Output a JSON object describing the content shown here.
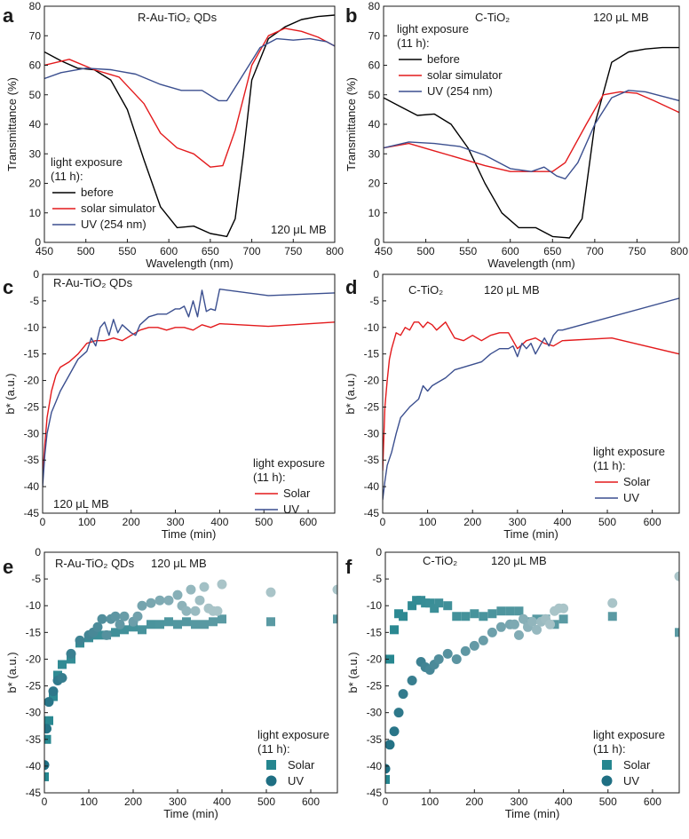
{
  "figure": {
    "colors": {
      "before": "#000000",
      "solar": "#e31a1c",
      "uv": "#3b4f8f",
      "solar_marker": "#25868f",
      "uv_marker": "#1f6f83",
      "marker_grad_light": "#a9c4c8",
      "marker_grad_mid": "#5a9aa3"
    }
  },
  "chart_data": [
    {
      "id": "a",
      "panel_letter": "a",
      "type": "line",
      "title": "R-Au-TiO₂ QDs",
      "annotation": "120 μL MB",
      "xlabel": "Wavelength (nm)",
      "ylabel": "Transmittance (%)",
      "xlim": [
        450,
        800
      ],
      "ylim": [
        0,
        80
      ],
      "xticks": [
        450,
        500,
        550,
        600,
        650,
        700,
        750,
        800
      ],
      "yticks": [
        0,
        10,
        20,
        30,
        40,
        50,
        60,
        70,
        80
      ],
      "legend_title": [
        "light exposure",
        "(11 h):"
      ],
      "series": [
        {
          "name": "before",
          "color_key": "before",
          "x": [
            450,
            470,
            490,
            510,
            530,
            550,
            570,
            590,
            610,
            630,
            650,
            670,
            680,
            690,
            700,
            720,
            740,
            760,
            780,
            800
          ],
          "y": [
            64.5,
            61.5,
            59,
            58.5,
            55,
            45,
            28,
            12,
            5,
            5.5,
            3,
            2,
            8,
            30,
            55,
            69,
            73,
            75.5,
            76.5,
            77
          ]
        },
        {
          "name": "solar simulator",
          "color_key": "solar",
          "x": [
            450,
            480,
            510,
            540,
            570,
            590,
            610,
            630,
            650,
            665,
            680,
            700,
            720,
            740,
            760,
            780,
            800
          ],
          "y": [
            60,
            62,
            58.5,
            56,
            47,
            37,
            32,
            30,
            25.5,
            26,
            38,
            60,
            70,
            72.5,
            71.5,
            69.5,
            66.5
          ]
        },
        {
          "name": "UV (254 nm)",
          "color_key": "uv",
          "x": [
            450,
            470,
            500,
            530,
            560,
            590,
            615,
            640,
            660,
            670,
            690,
            710,
            730,
            750,
            770,
            790,
            800
          ],
          "y": [
            55.5,
            57.5,
            59,
            58.5,
            57,
            53.5,
            51.5,
            51.5,
            48,
            48,
            57,
            66,
            69,
            68.5,
            69,
            68,
            66.5
          ]
        }
      ]
    },
    {
      "id": "b",
      "panel_letter": "b",
      "type": "line",
      "title": "C-TiO₂",
      "annotation": "120 μL MB",
      "xlabel": "Wavelength (nm)",
      "ylabel": "Transmittance (%)",
      "xlim": [
        450,
        800
      ],
      "ylim": [
        0,
        80
      ],
      "xticks": [
        450,
        500,
        550,
        600,
        650,
        700,
        750,
        800
      ],
      "yticks": [
        0,
        10,
        20,
        30,
        40,
        50,
        60,
        70,
        80
      ],
      "legend_title": [
        "light exposure",
        "(11 h):"
      ],
      "series": [
        {
          "name": "before",
          "color_key": "before",
          "x": [
            450,
            470,
            490,
            510,
            530,
            550,
            570,
            590,
            610,
            630,
            650,
            670,
            685,
            700,
            720,
            740,
            760,
            780,
            800
          ],
          "y": [
            49,
            46,
            43,
            43.5,
            40,
            32,
            20,
            10,
            5,
            5,
            2,
            1.5,
            8,
            40,
            61,
            64.5,
            65.5,
            66,
            66
          ]
        },
        {
          "name": "solar simulator",
          "color_key": "solar",
          "x": [
            450,
            480,
            510,
            540,
            570,
            600,
            630,
            650,
            665,
            690,
            710,
            730,
            750,
            770,
            800
          ],
          "y": [
            32,
            33.5,
            31,
            28.5,
            26,
            24,
            24,
            24,
            27,
            40,
            50,
            51,
            50.5,
            48,
            44
          ]
        },
        {
          "name": "UV (254 nm)",
          "color_key": "uv",
          "x": [
            450,
            480,
            510,
            540,
            570,
            600,
            625,
            640,
            655,
            665,
            680,
            700,
            720,
            740,
            760,
            780,
            800
          ],
          "y": [
            32,
            34,
            33.5,
            32.5,
            29.5,
            25,
            24,
            25.5,
            22.5,
            21.5,
            27,
            40,
            49,
            51.5,
            51,
            49.5,
            48
          ]
        }
      ]
    },
    {
      "id": "c",
      "panel_letter": "c",
      "type": "line",
      "title": "R-Au-TiO₂ QDs",
      "annotation": "120 μL MB",
      "xlabel": "Time (min)",
      "ylabel": "b* (a.u.)",
      "xlim": [
        0,
        660
      ],
      "ylim": [
        -45,
        0
      ],
      "xticks": [
        0,
        100,
        200,
        300,
        400,
        500,
        600
      ],
      "yticks": [
        -45,
        -40,
        -35,
        -30,
        -25,
        -20,
        -15,
        -10,
        -5,
        0
      ],
      "legend_title": [
        "light exposure",
        "(11 h):"
      ],
      "series": [
        {
          "name": "Solar",
          "color_key": "solar",
          "x": [
            0,
            5,
            10,
            20,
            30,
            40,
            60,
            80,
            100,
            120,
            140,
            160,
            180,
            200,
            220,
            240,
            260,
            280,
            300,
            320,
            340,
            360,
            380,
            400,
            510,
            660
          ],
          "y": [
            -38,
            -32,
            -27,
            -22,
            -19,
            -17.5,
            -16.5,
            -15,
            -13,
            -12.5,
            -12.5,
            -12,
            -12.5,
            -11.5,
            -10.5,
            -10,
            -10,
            -10.5,
            -10,
            -10,
            -10.5,
            -9.5,
            -10,
            -9.3,
            -9.8,
            -9
          ]
        },
        {
          "name": "UV",
          "color_key": "uv",
          "x": [
            0,
            5,
            10,
            20,
            30,
            40,
            60,
            80,
            100,
            110,
            120,
            130,
            140,
            150,
            160,
            170,
            180,
            200,
            210,
            220,
            240,
            260,
            280,
            300,
            310,
            320,
            330,
            340,
            350,
            360,
            370,
            380,
            390,
            400,
            510,
            660
          ],
          "y": [
            -40,
            -34,
            -30,
            -26,
            -24,
            -22,
            -19,
            -16,
            -14.5,
            -12,
            -13.5,
            -10,
            -9,
            -11.5,
            -8.5,
            -11,
            -9.5,
            -11,
            -11.5,
            -9.5,
            -8,
            -7.5,
            -7.5,
            -6.5,
            -6.5,
            -6,
            -8,
            -5,
            -8,
            -3,
            -7,
            -6.5,
            -6.8,
            -2.8,
            -4,
            -3.5
          ]
        }
      ]
    },
    {
      "id": "d",
      "panel_letter": "d",
      "type": "line",
      "title": "C-TiO₂",
      "annotation": "120 μL MB",
      "xlabel": "Time (min)",
      "ylabel": "b* (a.u.)",
      "xlim": [
        0,
        660
      ],
      "ylim": [
        -45,
        0
      ],
      "xticks": [
        0,
        100,
        200,
        300,
        400,
        500,
        600
      ],
      "yticks": [
        -45,
        -40,
        -35,
        -30,
        -25,
        -20,
        -15,
        -10,
        -5,
        0
      ],
      "legend_title": [
        "light exposure",
        "(11 h):"
      ],
      "series": [
        {
          "name": "Solar",
          "color_key": "solar",
          "x": [
            0,
            5,
            10,
            15,
            20,
            30,
            40,
            50,
            60,
            70,
            80,
            90,
            100,
            110,
            120,
            140,
            160,
            180,
            200,
            220,
            240,
            260,
            280,
            300,
            320,
            340,
            360,
            380,
            400,
            510,
            660
          ],
          "y": [
            -37,
            -25,
            -20,
            -16,
            -14,
            -11,
            -11.5,
            -10,
            -10.5,
            -9,
            -9,
            -10,
            -9,
            -9.5,
            -10.5,
            -9,
            -12,
            -12.5,
            -11.5,
            -12.5,
            -11.5,
            -11,
            -11,
            -14,
            -12.5,
            -12,
            -13,
            -13.5,
            -12.5,
            -12,
            -15
          ]
        },
        {
          "name": "UV",
          "color_key": "uv",
          "x": [
            0,
            5,
            10,
            20,
            30,
            40,
            60,
            80,
            90,
            100,
            110,
            120,
            140,
            160,
            180,
            200,
            220,
            240,
            260,
            280,
            290,
            300,
            310,
            320,
            330,
            340,
            350,
            360,
            370,
            380,
            390,
            400,
            660
          ],
          "y": [
            -42.5,
            -39,
            -36,
            -33.5,
            -30,
            -27,
            -25,
            -23.5,
            -21,
            -22,
            -21,
            -20.5,
            -19.5,
            -18,
            -17.5,
            -17,
            -16.5,
            -15,
            -14,
            -14,
            -13.5,
            -15.5,
            -13,
            -14,
            -13,
            -15,
            -13.5,
            -12,
            -13.5,
            -11.5,
            -10.5,
            -10.5,
            -4.5
          ]
        }
      ]
    },
    {
      "id": "e",
      "panel_letter": "e",
      "type": "scatter",
      "title": "R-Au-TiO₂ QDs",
      "annotation": "120 μL MB",
      "xlabel": "Time (min)",
      "ylabel": "b* (a.u.)",
      "xlim": [
        0,
        660
      ],
      "ylim": [
        -45,
        0
      ],
      "xticks": [
        0,
        100,
        200,
        300,
        400,
        500,
        600
      ],
      "yticks": [
        -45,
        -40,
        -35,
        -30,
        -25,
        -20,
        -15,
        -10,
        -5,
        0
      ],
      "legend_title": [
        "light exposure",
        "(11 h):"
      ],
      "series": [
        {
          "name": "Solar",
          "marker": "square",
          "color_key": "solar_marker",
          "x": [
            0,
            5,
            10,
            20,
            30,
            40,
            60,
            80,
            100,
            120,
            140,
            160,
            180,
            200,
            220,
            240,
            260,
            280,
            300,
            320,
            340,
            360,
            380,
            400,
            510,
            660
          ],
          "y": [
            -42,
            -35,
            -31.5,
            -27,
            -23,
            -21,
            -20,
            -17,
            -16,
            -15.5,
            -15.5,
            -15,
            -14.5,
            -14,
            -14.5,
            -13.5,
            -13.5,
            -13,
            -13.5,
            -13,
            -13.5,
            -13.5,
            -13,
            -12.5,
            -13,
            -12.5
          ]
        },
        {
          "name": "UV",
          "marker": "circle",
          "color_key": "uv_marker",
          "x": [
            0,
            5,
            10,
            20,
            30,
            40,
            60,
            80,
            100,
            110,
            120,
            130,
            140,
            150,
            160,
            170,
            180,
            200,
            210,
            220,
            240,
            260,
            280,
            300,
            310,
            320,
            330,
            340,
            350,
            360,
            370,
            380,
            390,
            400,
            510,
            660
          ],
          "y": [
            -39.8,
            -33,
            -28,
            -26,
            -24,
            -23.5,
            -19,
            -16.5,
            -15.5,
            -15,
            -14,
            -12.5,
            -15.5,
            -12.5,
            -12,
            -13.5,
            -12,
            -13,
            -12,
            -10,
            -9.5,
            -9,
            -9,
            -8,
            -10,
            -11,
            -7,
            -11,
            -9,
            -6.5,
            -10.5,
            -11,
            -11,
            -6,
            -7.5,
            -7
          ]
        }
      ]
    },
    {
      "id": "f",
      "panel_letter": "f",
      "type": "scatter",
      "title": "C-TiO₂",
      "annotation": "120 μL MB",
      "xlabel": "Time (min)",
      "ylabel": "b* (a.u.)",
      "xlim": [
        0,
        660
      ],
      "ylim": [
        -45,
        0
      ],
      "xticks": [
        0,
        100,
        200,
        300,
        400,
        500,
        600
      ],
      "yticks": [
        -45,
        -40,
        -35,
        -30,
        -25,
        -20,
        -15,
        -10,
        -5,
        0
      ],
      "legend_title": [
        "light exposure",
        "(11 h):"
      ],
      "series": [
        {
          "name": "Solar",
          "marker": "square",
          "color_key": "solar_marker",
          "x": [
            0,
            10,
            20,
            30,
            40,
            60,
            70,
            80,
            90,
            100,
            110,
            120,
            140,
            160,
            180,
            200,
            220,
            240,
            260,
            280,
            300,
            320,
            340,
            360,
            380,
            400,
            510,
            660
          ],
          "y": [
            -42.5,
            -20,
            -14.5,
            -11.5,
            -12,
            -10,
            -9,
            -9,
            -9.5,
            -9.5,
            -10.5,
            -9.5,
            -10,
            -12,
            -12,
            -11.5,
            -12,
            -11.5,
            -11,
            -11,
            -11,
            -13,
            -12.5,
            -12.5,
            -13.5,
            -12.5,
            -12,
            -15
          ]
        },
        {
          "name": "UV",
          "marker": "circle",
          "color_key": "uv_marker",
          "x": [
            0,
            10,
            20,
            30,
            40,
            60,
            80,
            90,
            100,
            110,
            120,
            140,
            160,
            180,
            200,
            220,
            240,
            260,
            280,
            290,
            300,
            310,
            320,
            330,
            340,
            350,
            360,
            370,
            380,
            390,
            400,
            510,
            660
          ],
          "y": [
            -40.5,
            -36,
            -33.5,
            -30,
            -26.5,
            -24,
            -20.5,
            -21.5,
            -22,
            -21,
            -20,
            -19,
            -20,
            -18.5,
            -17.5,
            -16.5,
            -15,
            -14,
            -13.5,
            -13.5,
            -15.5,
            -12.5,
            -14,
            -13,
            -14.5,
            -13,
            -12.5,
            -13.5,
            -11,
            -10.5,
            -10.5,
            -9.5,
            -4.5
          ]
        }
      ]
    }
  ]
}
